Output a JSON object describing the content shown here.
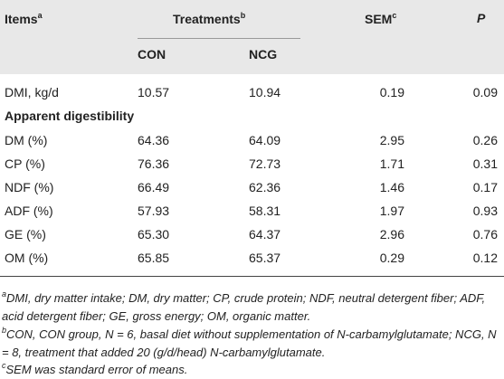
{
  "header": {
    "items": "Items",
    "items_note": "a",
    "treatments": "Treatments",
    "treatments_note": "b",
    "sem": "SEM",
    "sem_note": "c",
    "p": "P",
    "con": "CON",
    "ncg": "NCG"
  },
  "rows": [
    [
      "DMI, kg/d",
      "10.57",
      "10.94",
      "0.19",
      "0.09"
    ]
  ],
  "section": "Apparent digestibility",
  "section_rows": [
    [
      "DM (%)",
      "64.36",
      "64.09",
      "2.95",
      "0.26"
    ],
    [
      "CP (%)",
      "76.36",
      "72.73",
      "1.71",
      "0.31"
    ],
    [
      "NDF (%)",
      "66.49",
      "62.36",
      "1.46",
      "0.17"
    ],
    [
      "ADF (%)",
      "57.93",
      "58.31",
      "1.97",
      "0.93"
    ],
    [
      "GE (%)",
      "65.30",
      "64.37",
      "2.96",
      "0.76"
    ],
    [
      "OM (%)",
      "65.85",
      "65.37",
      "0.29",
      "0.12"
    ]
  ],
  "footnotes": [
    {
      "mark": "a",
      "text": "DMI, dry matter intake; DM, dry matter; CP, crude protein; NDF, neutral detergent fiber; ADF, acid detergent fiber; GE, gross energy; OM, organic matter."
    },
    {
      "mark": "b",
      "text": "CON, CON group, N = 6, basal diet without supplementation of N-carbamylglutamate; NCG, N = 8, treatment that added 20 (g/d/head) N-carbamylglutamate."
    },
    {
      "mark": "c",
      "text": "SEM was standard error of means."
    }
  ]
}
